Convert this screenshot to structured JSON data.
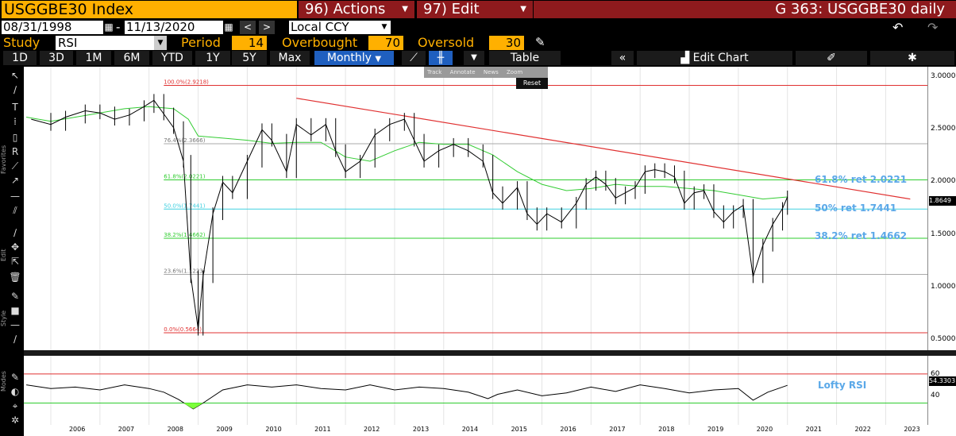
{
  "header": {
    "ticker": "USGGBE30 Index",
    "actions_num": "96)",
    "actions_label": "Actions",
    "edit_num": "97)",
    "edit_label": "Edit",
    "title": "G 363: USGGBE30 daily"
  },
  "range": {
    "start": "08/31/1998",
    "dash": "-",
    "end": "11/13/2020",
    "currency": "Local CCY"
  },
  "study": {
    "label": "Study",
    "value": "RSI",
    "period_label": "Period",
    "period": "14",
    "overbought_label": "Overbought",
    "overbought": "70",
    "oversold_label": "Oversold",
    "oversold": "30"
  },
  "toolbar": {
    "periods": [
      "1D",
      "3D",
      "1M",
      "6M",
      "YTD",
      "1Y",
      "5Y",
      "Max"
    ],
    "frequency": "Monthly",
    "table_label": "Table",
    "edit_chart_label": "Edit Chart"
  },
  "popup": {
    "track": "Track",
    "annotate": "Annotate",
    "news": "News",
    "zoom": "Zoom",
    "reset": "Reset"
  },
  "side_labels": {
    "favorites": "Favorites",
    "edit": "Edit",
    "style": "Style",
    "modes": "Modes"
  },
  "chart_data": {
    "type": "line",
    "subtype": "ohlc-bars",
    "x_ticks": [
      "2006",
      "2007",
      "2008",
      "2009",
      "2010",
      "2011",
      "2012",
      "2013",
      "2014",
      "2015",
      "2016",
      "2017",
      "2018",
      "2019",
      "2020",
      "2021",
      "2022",
      "2023"
    ],
    "y_ticks": [
      "3.0000",
      "2.5000",
      "2.0000",
      "1.5000",
      "1.0000",
      "0.5000"
    ],
    "ylim": [
      0.4,
      3.1
    ],
    "last_price": "1.8649",
    "fibonacci": [
      {
        "label": "100.0%(2.9218)",
        "value": 2.9218,
        "color": "#e03030"
      },
      {
        "label": "76.4%(2.3666)",
        "value": 2.3666,
        "color": "#aaaaaa"
      },
      {
        "label": "61.8%(2.0221)",
        "value": 2.0221,
        "color": "#2ecc2e"
      },
      {
        "label": "50.0%(1.7441)",
        "value": 1.7441,
        "color": "#40d0e0"
      },
      {
        "label": "38.2%(1.4662)",
        "value": 1.4662,
        "color": "#2ecc2e"
      },
      {
        "label": "23.6%(1.1223)",
        "value": 1.1223,
        "color": "#aaaaaa"
      },
      {
        "label": "0.0%(0.5664)",
        "value": 0.5664,
        "color": "#e03030"
      }
    ],
    "annotations": [
      {
        "text": "61.8% ret 2.0221",
        "value": 2.0221
      },
      {
        "text": "50% ret 1.7441",
        "value": 1.7441
      },
      {
        "text": "38.2% ret 1.4662",
        "value": 1.4662
      }
    ],
    "trendline": {
      "start": [
        2011.0,
        2.8
      ],
      "end": [
        2023.5,
        1.84
      ]
    },
    "series": [
      {
        "values": [
          [
            2005.5,
            2.62
          ],
          [
            2006.0,
            2.58
          ],
          [
            2006.5,
            2.62
          ],
          [
            2007.0,
            2.66
          ],
          [
            2007.5,
            2.7
          ],
          [
            2008.0,
            2.72
          ],
          [
            2008.5,
            2.7
          ],
          [
            2008.8,
            2.6
          ],
          [
            2009.0,
            2.44
          ],
          [
            2009.5,
            2.42
          ],
          [
            2010.0,
            2.4
          ],
          [
            2010.5,
            2.37
          ],
          [
            2011.0,
            2.38
          ],
          [
            2011.5,
            2.38
          ],
          [
            2012.0,
            2.24
          ],
          [
            2012.5,
            2.2
          ],
          [
            2013.0,
            2.3
          ],
          [
            2013.5,
            2.38
          ],
          [
            2014.0,
            2.36
          ],
          [
            2014.5,
            2.36
          ],
          [
            2015.0,
            2.26
          ],
          [
            2015.5,
            2.1
          ],
          [
            2016.0,
            1.98
          ],
          [
            2016.5,
            1.92
          ],
          [
            2017.0,
            1.94
          ],
          [
            2017.5,
            1.98
          ],
          [
            2018.0,
            1.96
          ],
          [
            2018.5,
            1.96
          ],
          [
            2019.0,
            1.94
          ],
          [
            2019.5,
            1.92
          ],
          [
            2020.0,
            1.88
          ],
          [
            2020.5,
            1.84
          ],
          [
            2021.0,
            1.86
          ]
        ],
        "color": "#33cc33"
      },
      {
        "values": [
          [
            2005.6,
            2.6
          ],
          [
            2006.0,
            2.55
          ],
          [
            2006.3,
            2.62
          ],
          [
            2006.7,
            2.68
          ],
          [
            2007.0,
            2.66
          ],
          [
            2007.3,
            2.6
          ],
          [
            2007.6,
            2.64
          ],
          [
            2007.9,
            2.72
          ],
          [
            2008.1,
            2.78
          ],
          [
            2008.3,
            2.65
          ],
          [
            2008.5,
            2.52
          ],
          [
            2008.7,
            2.2
          ],
          [
            2008.85,
            1.1
          ],
          [
            2009.0,
            0.6
          ],
          [
            2009.1,
            1.1
          ],
          [
            2009.3,
            1.7
          ],
          [
            2009.5,
            2.0
          ],
          [
            2009.7,
            1.9
          ],
          [
            2010.0,
            2.2
          ],
          [
            2010.3,
            2.5
          ],
          [
            2010.5,
            2.4
          ],
          [
            2010.8,
            2.1
          ],
          [
            2011.0,
            2.55
          ],
          [
            2011.3,
            2.45
          ],
          [
            2011.6,
            2.55
          ],
          [
            2011.8,
            2.3
          ],
          [
            2012.0,
            2.1
          ],
          [
            2012.3,
            2.2
          ],
          [
            2012.6,
            2.45
          ],
          [
            2012.9,
            2.55
          ],
          [
            2013.2,
            2.6
          ],
          [
            2013.4,
            2.4
          ],
          [
            2013.6,
            2.2
          ],
          [
            2013.9,
            2.3
          ],
          [
            2014.2,
            2.36
          ],
          [
            2014.5,
            2.3
          ],
          [
            2014.8,
            2.2
          ],
          [
            2015.0,
            1.9
          ],
          [
            2015.2,
            1.8
          ],
          [
            2015.5,
            1.95
          ],
          [
            2015.7,
            1.7
          ],
          [
            2015.9,
            1.6
          ],
          [
            2016.1,
            1.7
          ],
          [
            2016.4,
            1.62
          ],
          [
            2016.7,
            1.8
          ],
          [
            2016.9,
            1.98
          ],
          [
            2017.1,
            2.05
          ],
          [
            2017.3,
            1.98
          ],
          [
            2017.5,
            1.85
          ],
          [
            2017.7,
            1.9
          ],
          [
            2017.9,
            1.95
          ],
          [
            2018.1,
            2.1
          ],
          [
            2018.3,
            2.12
          ],
          [
            2018.5,
            2.1
          ],
          [
            2018.7,
            2.05
          ],
          [
            2018.9,
            1.8
          ],
          [
            2019.1,
            1.9
          ],
          [
            2019.3,
            1.92
          ],
          [
            2019.5,
            1.72
          ],
          [
            2019.7,
            1.62
          ],
          [
            2019.9,
            1.72
          ],
          [
            2020.1,
            1.78
          ],
          [
            2020.3,
            1.1
          ],
          [
            2020.5,
            1.4
          ],
          [
            2020.7,
            1.6
          ],
          [
            2020.9,
            1.75
          ],
          [
            2021.0,
            1.86
          ]
        ],
        "color": "#000000"
      }
    ],
    "rsi": {
      "label": "Lofty RSI",
      "last_value": "54.3303",
      "y_ticks": [
        "60",
        "40"
      ],
      "overbought": 70,
      "oversold": 30,
      "values": [
        [
          2005.5,
          55
        ],
        [
          2006.0,
          50
        ],
        [
          2006.5,
          52
        ],
        [
          2007.0,
          48
        ],
        [
          2007.5,
          55
        ],
        [
          2008.0,
          50
        ],
        [
          2008.3,
          45
        ],
        [
          2008.6,
          35
        ],
        [
          2008.9,
          22
        ],
        [
          2009.1,
          30
        ],
        [
          2009.5,
          48
        ],
        [
          2010.0,
          55
        ],
        [
          2010.5,
          52
        ],
        [
          2011.0,
          55
        ],
        [
          2011.5,
          50
        ],
        [
          2012.0,
          48
        ],
        [
          2012.5,
          55
        ],
        [
          2013.0,
          48
        ],
        [
          2013.5,
          52
        ],
        [
          2014.0,
          50
        ],
        [
          2014.5,
          45
        ],
        [
          2014.9,
          36
        ],
        [
          2015.1,
          42
        ],
        [
          2015.5,
          48
        ],
        [
          2016.0,
          40
        ],
        [
          2016.5,
          44
        ],
        [
          2017.0,
          52
        ],
        [
          2017.5,
          46
        ],
        [
          2018.0,
          55
        ],
        [
          2018.5,
          50
        ],
        [
          2019.0,
          44
        ],
        [
          2019.5,
          48
        ],
        [
          2020.0,
          50
        ],
        [
          2020.3,
          34
        ],
        [
          2020.6,
          45
        ],
        [
          2021.0,
          54.33
        ]
      ]
    }
  }
}
